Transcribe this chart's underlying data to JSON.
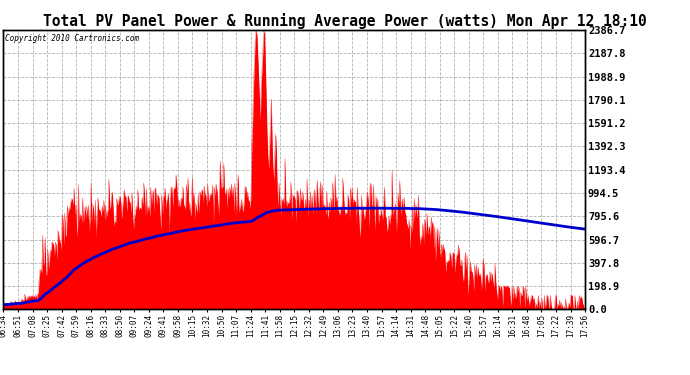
{
  "title": "Total PV Panel Power & Running Average Power (watts) Mon Apr 12 18:10",
  "copyright": "Copyright 2010 Cartronics.com",
  "y_ticks": [
    0.0,
    198.9,
    397.8,
    596.7,
    795.6,
    994.5,
    1193.4,
    1392.3,
    1591.2,
    1790.1,
    1988.9,
    2187.8,
    2386.7
  ],
  "x_labels": [
    "06:34",
    "06:51",
    "07:08",
    "07:25",
    "07:42",
    "07:59",
    "08:16",
    "08:33",
    "08:50",
    "09:07",
    "09:24",
    "09:41",
    "09:58",
    "10:15",
    "10:32",
    "10:50",
    "11:07",
    "11:24",
    "11:41",
    "11:58",
    "12:15",
    "12:32",
    "12:49",
    "13:06",
    "13:23",
    "13:40",
    "13:57",
    "14:14",
    "14:31",
    "14:48",
    "15:05",
    "15:22",
    "15:40",
    "15:57",
    "16:14",
    "16:31",
    "16:48",
    "17:05",
    "17:22",
    "17:39",
    "17:56"
  ],
  "ymax": 2386.7,
  "ymin": 0.0,
  "background_color": "#ffffff",
  "plot_bg_color": "#ffffff",
  "grid_color": "#aaaaaa",
  "fill_color": "#ff0000",
  "line_color": "#0000cc",
  "border_color": "#000000",
  "title_color": "#000000",
  "copyright_color": "#000000",
  "title_fontsize": 10.5,
  "copyright_fontsize": 5.5,
  "ytick_fontsize": 7.5,
  "xtick_fontsize": 5.5
}
